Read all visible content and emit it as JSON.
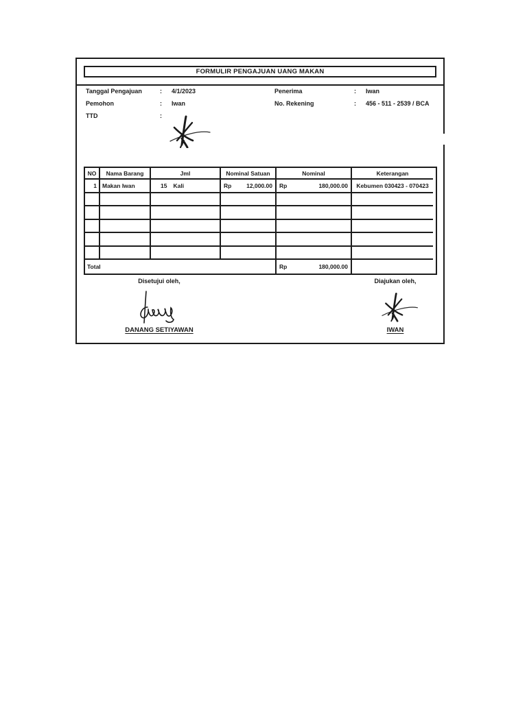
{
  "page": {
    "background": "#ffffff"
  },
  "colors": {
    "border": "#1c1c1c",
    "text": "#1a1a1a"
  },
  "form": {
    "title": "FORMULIR PENGAJUAN UANG MAKAN",
    "header": {
      "left": [
        {
          "label": "Tanggal Pengajuan",
          "separator": ":",
          "value": "4/1/2023"
        },
        {
          "label": "Pemohon",
          "separator": ":",
          "value": "Iwan"
        },
        {
          "label": "TTD",
          "separator": ":",
          "value": ""
        }
      ],
      "right": [
        {
          "label": "Penerima",
          "separator": ":",
          "value": "Iwan"
        },
        {
          "label": "No. Rekening",
          "separator": ":",
          "value": "456 - 511 - 2539 / BCA"
        }
      ]
    },
    "table": {
      "columns": [
        "NO",
        "Nama Barang",
        "Jml",
        "Nominal Satuan",
        "Nominal",
        "Keterangan"
      ],
      "rows": [
        {
          "no": "1",
          "nama_barang": "Makan Iwan",
          "jml_qty": "15",
          "jml_unit": "Kali",
          "satuan_currency": "Rp",
          "satuan_amount": "12,000.00",
          "nominal_currency": "Rp",
          "nominal_amount": "180,000.00",
          "keterangan": "Kebumen 030423 - 070423"
        }
      ],
      "empty_row_count": 5,
      "total": {
        "label": "Total",
        "currency": "Rp",
        "amount": "180,000.00"
      }
    },
    "signatures": {
      "approver": {
        "caption": "Disetujui oleh,",
        "name": "DANANG SETIYAWAN",
        "signature_icon": "danang-handwritten-signature"
      },
      "submitter": {
        "caption": "Diajukan oleh,",
        "name": "IWAN",
        "signature_icon": "iwan-handwritten-signature"
      },
      "ttd_icon": "iwan-handwritten-signature"
    }
  }
}
